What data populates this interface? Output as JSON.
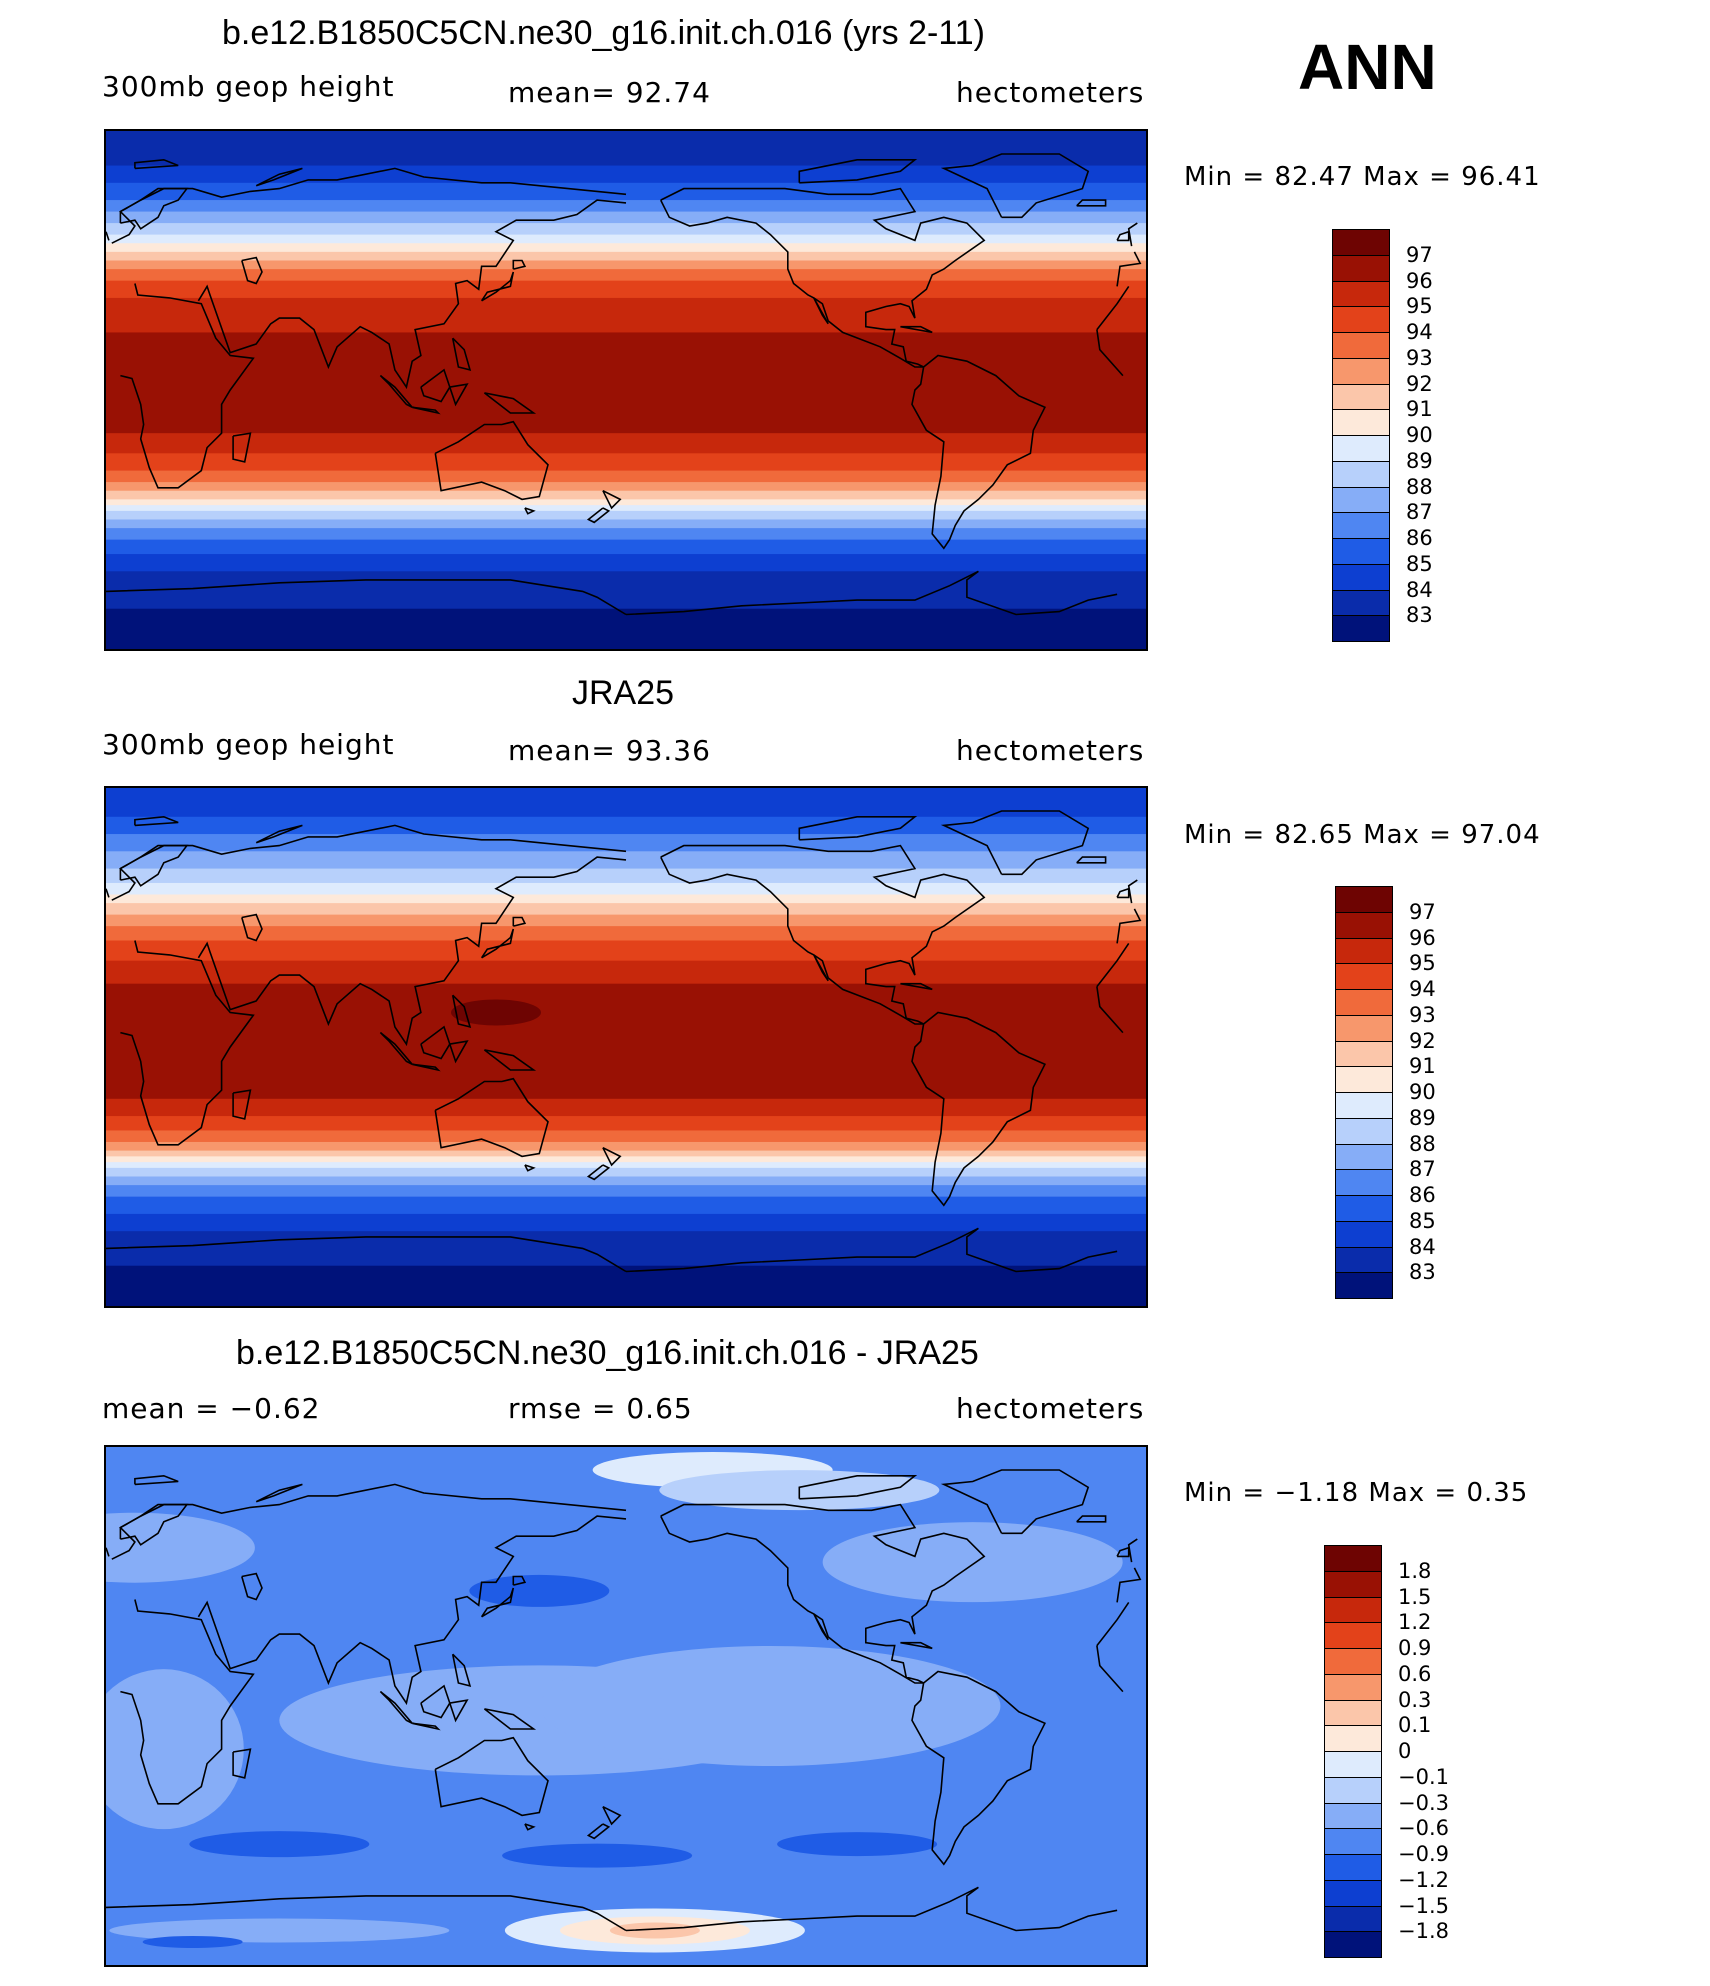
{
  "season": "ANN",
  "colors": {
    "abs": [
      "#00127a",
      "#0a2cab",
      "#0d3fd1",
      "#1f5ce6",
      "#4f86f2",
      "#86adf7",
      "#b7d0fb",
      "#deebfd",
      "#fde9da",
      "#fbc6aa",
      "#f7976c",
      "#f06a3b",
      "#e3421a",
      "#c7280c",
      "#991104",
      "#6e0402"
    ],
    "diff": [
      "#00127a",
      "#0a2cab",
      "#0d3fd1",
      "#1f5ce6",
      "#4f86f2",
      "#86adf7",
      "#b7d0fb",
      "#deebfd",
      "#fde9da",
      "#fbc6aa",
      "#f7976c",
      "#f06a3b",
      "#e3421a",
      "#c7280c",
      "#991104",
      "#6e0402"
    ],
    "coast": "#000000"
  },
  "panels": [
    {
      "title": "b.e12.B1850C5CN.ne30_g16.init.ch.016 (yrs 2-11)",
      "left": "300mb geop height",
      "center": "mean=   92.74",
      "right": "hectometers",
      "minmax": "Min =   82.47  Max =   96.41",
      "colorbar_labels": [
        "97",
        "96",
        "95",
        "94",
        "93",
        "92",
        "91",
        "90",
        "89",
        "88",
        "87",
        "86",
        "85",
        "84",
        "83"
      ],
      "colorbar_type": "abs"
    },
    {
      "title": "JRA25",
      "left": "300mb geop height",
      "center": "mean=   93.36",
      "right": "hectometers",
      "minmax": "Min =   82.65  Max =   97.04",
      "colorbar_labels": [
        "97",
        "96",
        "95",
        "94",
        "93",
        "92",
        "91",
        "90",
        "89",
        "88",
        "87",
        "86",
        "85",
        "84",
        "83"
      ],
      "colorbar_type": "abs"
    },
    {
      "title": "b.e12.B1850C5CN.ne30_g16.init.ch.016 - JRA25",
      "left": "mean =   −0.62",
      "center": "rmse =    0.65",
      "right": "hectometers",
      "minmax": "Min =   −1.18  Max =    0.35",
      "colorbar_labels": [
        "1.8",
        "1.5",
        "1.2",
        "0.9",
        "0.6",
        "0.3",
        "0.1",
        "0",
        "−0.1",
        "−0.3",
        "−0.6",
        "−0.9",
        "−1.2",
        "−1.5",
        "−1.8"
      ],
      "colorbar_type": "diff"
    }
  ]
}
